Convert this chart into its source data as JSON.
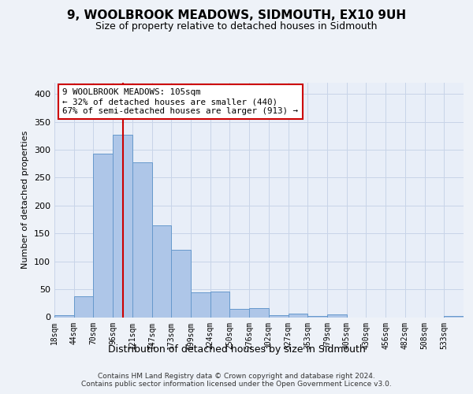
{
  "title": "9, WOOLBROOK MEADOWS, SIDMOUTH, EX10 9UH",
  "subtitle": "Size of property relative to detached houses in Sidmouth",
  "xlabel": "Distribution of detached houses by size in Sidmouth",
  "ylabel": "Number of detached properties",
  "bin_labels": [
    "18sqm",
    "44sqm",
    "70sqm",
    "96sqm",
    "121sqm",
    "147sqm",
    "173sqm",
    "199sqm",
    "224sqm",
    "250sqm",
    "276sqm",
    "302sqm",
    "327sqm",
    "353sqm",
    "379sqm",
    "405sqm",
    "430sqm",
    "456sqm",
    "482sqm",
    "508sqm",
    "533sqm"
  ],
  "bar_heights": [
    3,
    38,
    293,
    327,
    278,
    165,
    121,
    44,
    46,
    15,
    16,
    4,
    6,
    2,
    5,
    0,
    0,
    0,
    0,
    0,
    2
  ],
  "bar_color": "#aec6e8",
  "bar_edge_color": "#6699cc",
  "vline_color": "#cc0000",
  "vline_x_idx": 3.5,
  "annotation_text": "9 WOOLBROOK MEADOWS: 105sqm\n← 32% of detached houses are smaller (440)\n67% of semi-detached houses are larger (913) →",
  "annotation_box_color": "#ffffff",
  "annotation_box_edge": "#cc0000",
  "footer_text": "Contains HM Land Registry data © Crown copyright and database right 2024.\nContains public sector information licensed under the Open Government Licence v3.0.",
  "ylim": [
    0,
    420
  ],
  "background_color": "#eef2f8",
  "plot_bg_color": "#e8eef8",
  "title_fontsize": 11,
  "subtitle_fontsize": 9,
  "ylabel_fontsize": 8,
  "xlabel_fontsize": 9,
  "tick_fontsize": 7
}
